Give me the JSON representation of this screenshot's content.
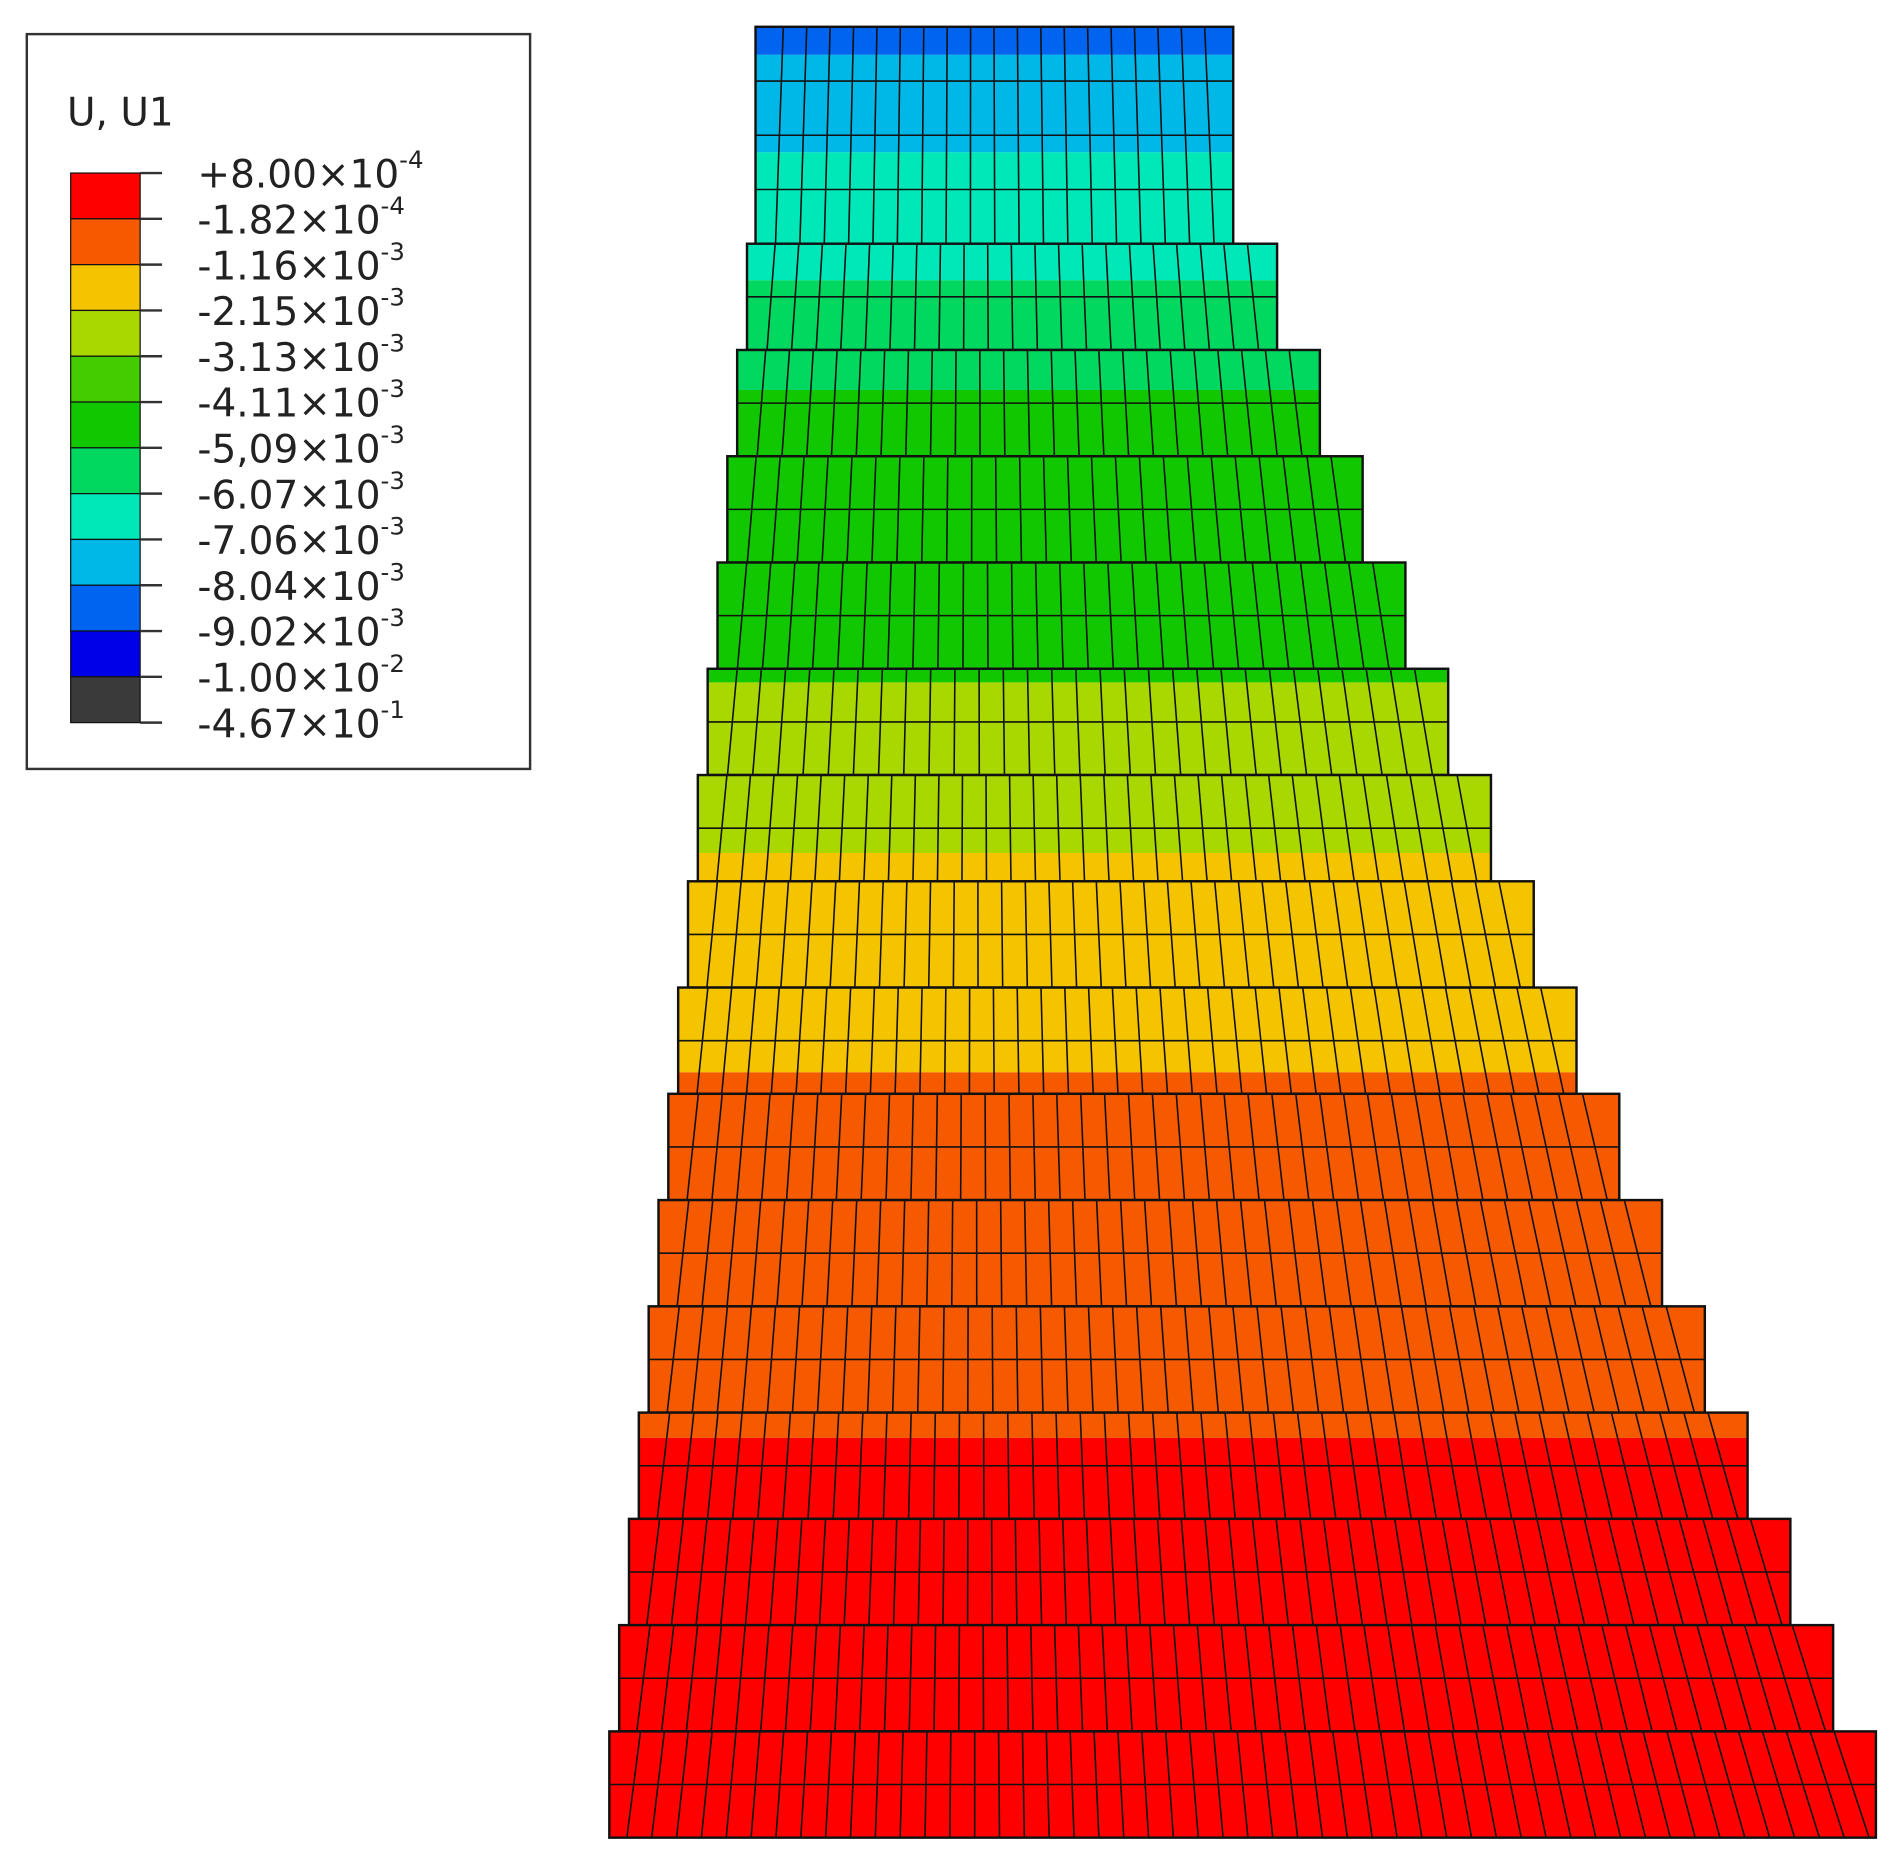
{
  "legend": {
    "title": "U, U1",
    "colors": [
      "#ff0000",
      "#f55a00",
      "#f5c400",
      "#a8d800",
      "#44cc00",
      "#11c800",
      "#00d860",
      "#00e8b8",
      "#00b8e8",
      "#0064f0",
      "#0000e8",
      "#3a3a3a"
    ],
    "labels": [
      {
        "base": "+8.00×10",
        "exponent": "-4"
      },
      {
        "base": "-1.82×10",
        "exponent": "-4"
      },
      {
        "base": "-1.16×10",
        "exponent": "-3"
      },
      {
        "base": "-2.15×10",
        "exponent": "-3"
      },
      {
        "base": "-3.13×10",
        "exponent": "-3"
      },
      {
        "base": "-4.11×10",
        "exponent": "-3"
      },
      {
        "base": "-5,09×10",
        "exponent": "-3"
      },
      {
        "base": "-6.07×10",
        "exponent": "-3"
      },
      {
        "base": "-7.06×10",
        "exponent": "-3"
      },
      {
        "base": "-8.04×10",
        "exponent": "-3"
      },
      {
        "base": "-9.02×10",
        "exponent": "-3"
      },
      {
        "base": "-1.00×10",
        "exponent": "-2"
      },
      {
        "base": "-4.67×10",
        "exponent": "-1"
      }
    ]
  }
}
